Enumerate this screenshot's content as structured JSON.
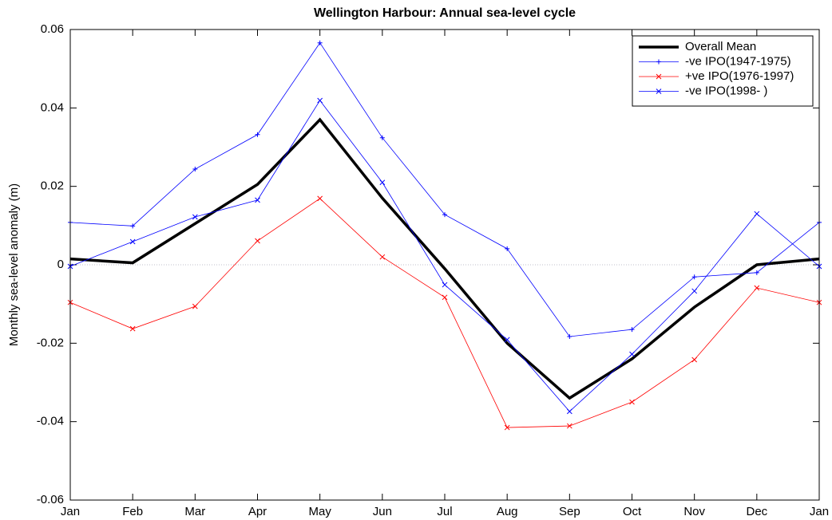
{
  "chart_data": {
    "type": "line",
    "title": "Wellington Harbour: Annual sea-level cycle",
    "y_label": "Monthly sea-level anomaly (m)",
    "categories": [
      "Jan",
      "Feb",
      "Mar",
      "Apr",
      "May",
      "Jun",
      "Jul",
      "Aug",
      "Sep",
      "Oct",
      "Nov",
      "Dec",
      "Jan"
    ],
    "ylim": [
      -0.06,
      0.06
    ],
    "yticks": [
      0.06,
      0.04,
      0.02,
      0,
      -0.02,
      -0.04,
      -0.06
    ],
    "zero_line": true,
    "legend": "upper right",
    "series": [
      {
        "name": "Overall Mean",
        "color": "#000000",
        "linewidth": 3.5,
        "marker": "none",
        "values": [
          0.0015,
          0.0005,
          0.0105,
          0.0205,
          0.037,
          0.017,
          -0.001,
          -0.02,
          -0.034,
          -0.024,
          -0.0108,
          0.0,
          0.0015
        ]
      },
      {
        "name": "-ve IPO(1947-1975)",
        "color": "#0000ff",
        "linewidth": 0.8,
        "marker": "plus",
        "values": [
          0.0108,
          0.0099,
          0.0244,
          0.0332,
          0.0566,
          0.0324,
          0.0128,
          0.0041,
          -0.0183,
          -0.0165,
          -0.0031,
          -0.002,
          0.0108
        ]
      },
      {
        "name": "+ve IPO(1976-1997)",
        "color": "#ff0000",
        "linewidth": 0.8,
        "marker": "cross",
        "values": [
          -0.0096,
          -0.0163,
          -0.0106,
          0.0061,
          0.0169,
          0.002,
          -0.0083,
          -0.0415,
          -0.0411,
          -0.035,
          -0.0242,
          -0.0059,
          -0.0096
        ]
      },
      {
        "name": "-ve IPO(1998- )",
        "color": "#0000ff",
        "linewidth": 0.8,
        "marker": "cross",
        "values": [
          -0.0004,
          0.0059,
          0.0122,
          0.0165,
          0.0419,
          0.021,
          -0.0051,
          -0.0191,
          -0.0374,
          -0.0228,
          -0.0067,
          0.013,
          -0.0004
        ]
      }
    ]
  }
}
